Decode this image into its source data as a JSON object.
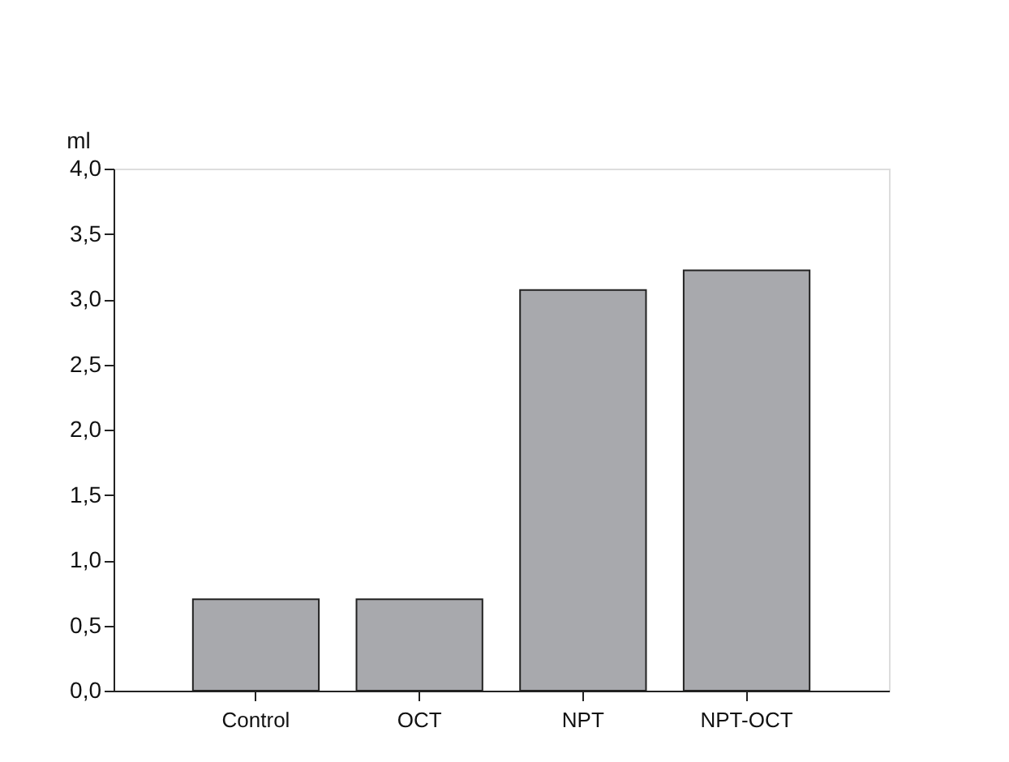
{
  "chart_data": {
    "type": "bar",
    "ylabel": "ml",
    "categories": [
      "Control",
      "OCT",
      "NPT",
      "NPT-OCT"
    ],
    "values": [
      0.7,
      0.7,
      3.07,
      3.22
    ],
    "color": "#a8a9ad",
    "ylim": [
      0,
      4
    ],
    "yticks": [
      {
        "value": 0,
        "label": "0,0"
      },
      {
        "value": 0.5,
        "label": "0,5"
      },
      {
        "value": 1,
        "label": "1,0"
      },
      {
        "value": 1.5,
        "label": "1,5"
      },
      {
        "value": 2,
        "label": "2,0"
      },
      {
        "value": 2.5,
        "label": "2,5"
      },
      {
        "value": 3,
        "label": "3,0"
      },
      {
        "value": 3.5,
        "label": "3,5"
      },
      {
        "value": 4,
        "label": "4,0"
      }
    ],
    "grid": false
  }
}
